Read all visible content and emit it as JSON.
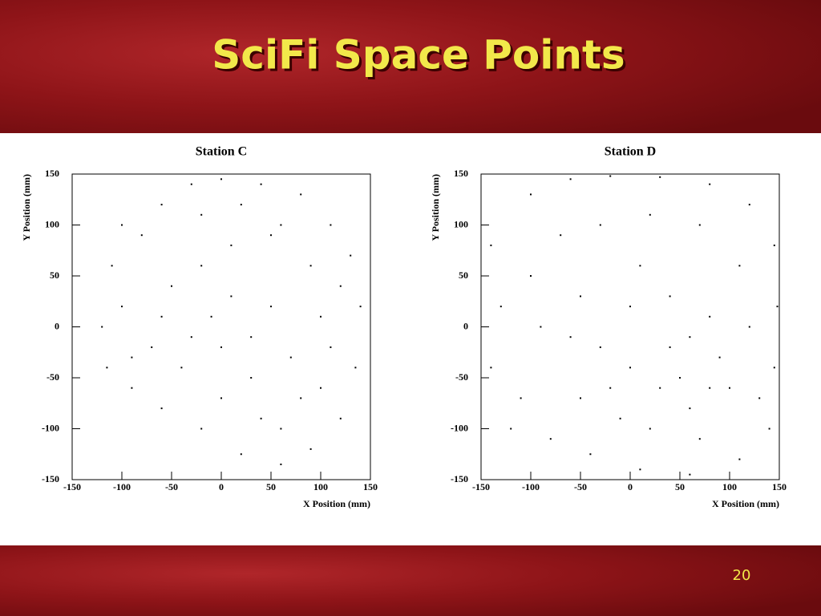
{
  "title": "SciFi Space Points",
  "page_number": "20",
  "chart_data": [
    {
      "type": "scatter",
      "title": "Station C",
      "x_label": "X Position (mm)",
      "y_label": "Y Position (mm)",
      "color": "#000000",
      "xlim": [
        -150,
        150
      ],
      "ylim": [
        -150,
        150
      ],
      "xticks": [
        -150,
        -100,
        -50,
        0,
        50,
        100,
        150
      ],
      "yticks": [
        -150,
        -100,
        -50,
        0,
        50,
        100,
        150
      ],
      "x": [
        -110,
        -100,
        -90,
        -115,
        -80,
        -60,
        -30,
        0,
        40,
        80,
        110,
        130,
        140,
        135,
        120,
        90,
        60,
        20,
        -20,
        -60,
        -90,
        -50,
        -20,
        10,
        50,
        90,
        100,
        70,
        30,
        0,
        -30,
        -60,
        -70,
        -40,
        10,
        50,
        80,
        40,
        0,
        -20,
        20,
        60,
        110,
        100,
        -100,
        -120,
        -10,
        30,
        60,
        120
      ],
      "y": [
        60,
        20,
        -30,
        -40,
        90,
        120,
        140,
        145,
        140,
        130,
        100,
        70,
        20,
        -40,
        -90,
        -120,
        -135,
        -125,
        -100,
        -80,
        -60,
        40,
        60,
        80,
        90,
        60,
        10,
        -30,
        -50,
        -20,
        -10,
        10,
        -20,
        -40,
        30,
        20,
        -70,
        -90,
        -70,
        110,
        120,
        100,
        -20,
        -60,
        100,
        0,
        10,
        -10,
        -100,
        40
      ]
    },
    {
      "type": "scatter",
      "title": "Station D",
      "x_label": "X Position (mm)",
      "y_label": "Y Position (mm)",
      "color": "#000000",
      "xlim": [
        -150,
        150
      ],
      "ylim": [
        -150,
        150
      ],
      "xticks": [
        -150,
        -100,
        -50,
        0,
        50,
        100,
        150
      ],
      "yticks": [
        -150,
        -100,
        -50,
        0,
        50,
        100,
        150
      ],
      "x": [
        -140,
        -130,
        -140,
        -120,
        -100,
        -60,
        -20,
        30,
        80,
        120,
        145,
        148,
        145,
        140,
        110,
        60,
        10,
        -40,
        -80,
        -110,
        -100,
        -70,
        -30,
        20,
        70,
        110,
        120,
        100,
        60,
        30,
        0,
        -30,
        -60,
        -90,
        -50,
        0,
        40,
        80,
        40,
        20,
        70,
        -10,
        -50,
        90,
        130,
        50,
        10,
        -20,
        80,
        60
      ],
      "y": [
        80,
        20,
        -40,
        -100,
        130,
        145,
        148,
        147,
        140,
        120,
        80,
        20,
        -40,
        -100,
        -130,
        -145,
        -140,
        -125,
        -110,
        -70,
        50,
        90,
        100,
        110,
        100,
        60,
        0,
        -60,
        -80,
        -60,
        -40,
        -20,
        -10,
        0,
        30,
        20,
        30,
        10,
        -20,
        -100,
        -110,
        -90,
        -70,
        -30,
        -70,
        -50,
        60,
        -60,
        -60,
        -10
      ]
    }
  ]
}
